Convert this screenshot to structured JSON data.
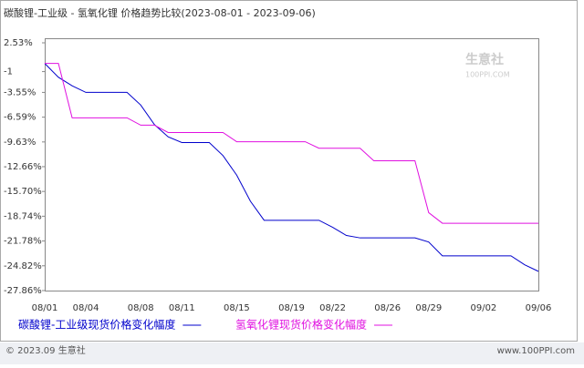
{
  "chart_data": {
    "type": "line",
    "title": "碳酸锂-工业级 - 氢氧化锂 价格趋势比较(2023-08-01 - 2023-09-06)",
    "categories": [
      "08/01",
      null,
      null,
      "08/04",
      null,
      null,
      null,
      "08/08",
      null,
      null,
      "08/11",
      null,
      null,
      null,
      "08/15",
      null,
      null,
      null,
      "08/19",
      null,
      null,
      "08/22",
      null,
      null,
      null,
      "08/26",
      null,
      null,
      "08/29",
      null,
      null,
      null,
      "09/02",
      null,
      null,
      null,
      "09/06"
    ],
    "series": [
      {
        "name": "碳酸锂-工业级现货价格变化幅度",
        "color": "#0000cc",
        "values": [
          0,
          -1.7,
          -2.74,
          -3.55,
          -3.55,
          -3.55,
          -3.55,
          -5.1,
          -7.5,
          -9.0,
          -9.7,
          -9.7,
          -9.7,
          -11.3,
          -13.7,
          -16.9,
          -19.24,
          -19.24,
          -19.24,
          -19.24,
          -19.24,
          -20.1,
          -21.1,
          -21.4,
          -21.4,
          -21.4,
          -21.4,
          -21.4,
          -21.9,
          -23.6,
          -23.6,
          -23.6,
          -23.6,
          -23.6,
          -23.6,
          -24.7,
          -25.5
        ]
      },
      {
        "name": "氢氧化锂现货价格变化幅度",
        "color": "#e010e0",
        "values": [
          0,
          0,
          -6.67,
          -6.67,
          -6.67,
          -6.67,
          -6.67,
          -7.57,
          -7.57,
          -8.47,
          -8.47,
          -8.47,
          -8.47,
          -8.47,
          -9.6,
          -9.6,
          -9.6,
          -9.6,
          -9.6,
          -9.6,
          -10.4,
          -10.4,
          -10.4,
          -10.4,
          -11.94,
          -11.94,
          -11.94,
          -11.94,
          -18.3,
          -19.6,
          -19.6,
          -19.6,
          -19.6,
          -19.6,
          -19.6,
          -19.6,
          -19.6
        ]
      }
    ],
    "ylim": [
      -27.86,
      2.53
    ],
    "yticks": [
      {
        "value": 2.53,
        "label": "2.53%"
      },
      -1,
      {
        "value": -3.55,
        "label": "-3.55%"
      },
      {
        "value": -6.59,
        "label": "-6.59%"
      },
      {
        "value": -9.63,
        "label": "-9.63%"
      },
      {
        "value": -12.66,
        "label": "-12.66%"
      },
      {
        "value": -15.7,
        "label": "-15.70%"
      },
      {
        "value": -18.74,
        "label": "-18.74%"
      },
      {
        "value": -21.78,
        "label": "-21.78%"
      },
      {
        "value": -24.82,
        "label": "-24.82%"
      },
      {
        "value": -27.86,
        "label": "-27.86%"
      }
    ],
    "watermark": {
      "name": "生意社",
      "site": "100PPI.COM"
    },
    "footer": {
      "left": "© 2023.09 生意社",
      "right": "www.100PPI.com"
    }
  }
}
